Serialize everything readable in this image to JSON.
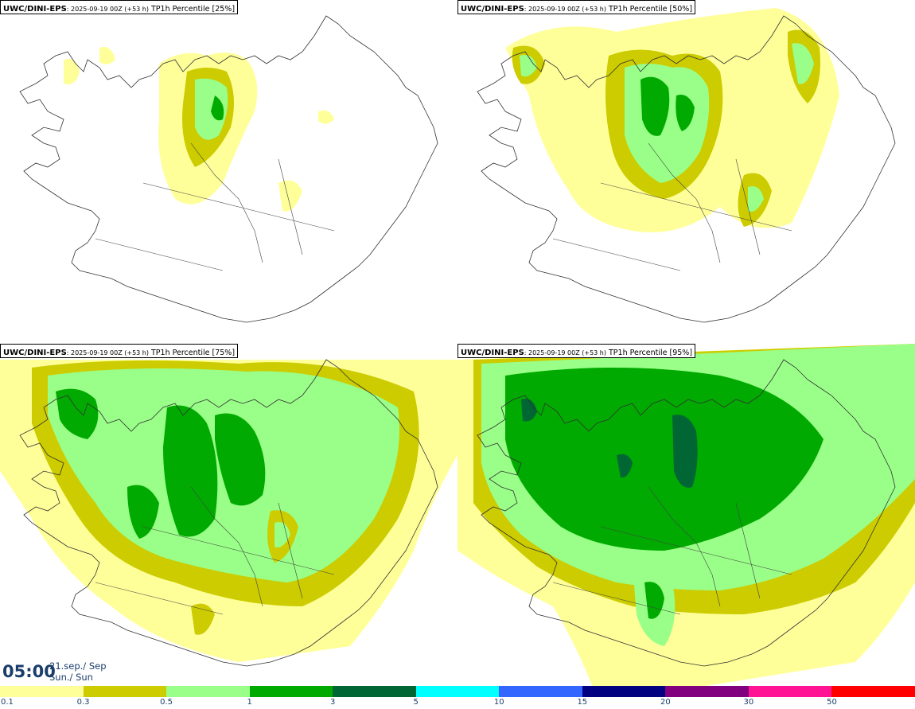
{
  "panels": [
    {
      "model": "UWC/DINI-EPS",
      "run": ": 2025-09-19 00Z (+53 h)",
      "param": " TP1h Percentile [25%]",
      "percentile": 25
    },
    {
      "model": "UWC/DINI-EPS",
      "run": ": 2025-09-19 00Z (+53 h)",
      "param": " TP1h Percentile [50%]",
      "percentile": 50
    },
    {
      "model": "UWC/DINI-EPS",
      "run": ": 2025-09-19 00Z (+53 h)",
      "param": " TP1h Percentile [75%]",
      "percentile": 75
    },
    {
      "model": "UWC/DINI-EPS",
      "run": ": 2025-09-19 00Z (+53 h)",
      "param": " TP1h Percentile [95%]",
      "percentile": 95
    }
  ],
  "valid_time": {
    "time": "05:00",
    "date_line": "21.sep./ Sep",
    "day_line": "Sun./ Sun"
  },
  "legend": {
    "labels": [
      "0.1",
      "0.3",
      "0.5",
      "1",
      "3",
      "5",
      "10",
      "15",
      "20",
      "30",
      "50"
    ],
    "colors": [
      "#ffff99",
      "#cccc00",
      "#99ff88",
      "#00aa00",
      "#006633",
      "#00ffff",
      "#3366ff",
      "#000080",
      "#800080",
      "#ff1493",
      "#ff0000"
    ]
  }
}
